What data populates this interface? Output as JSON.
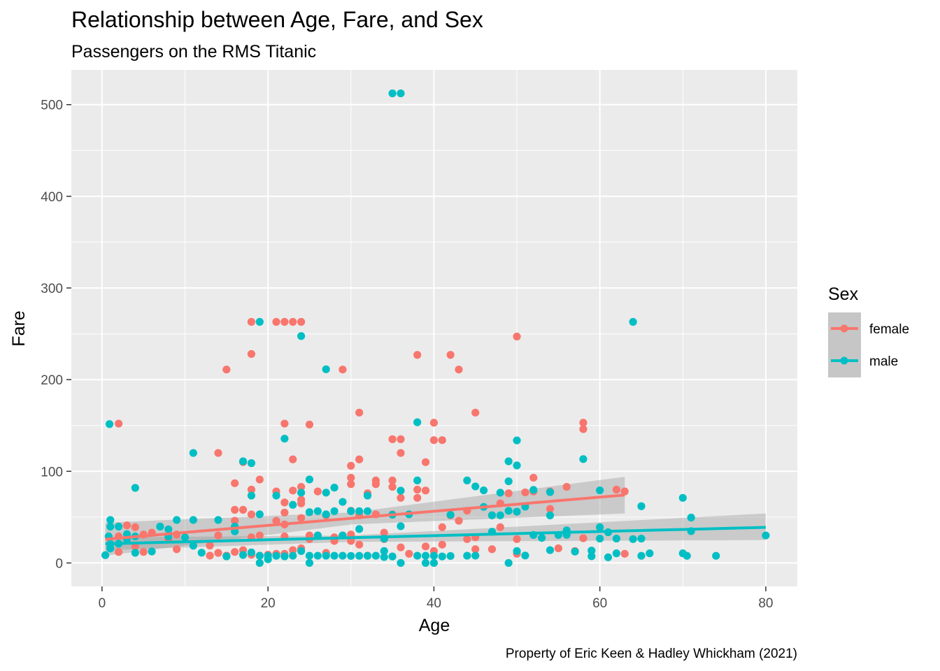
{
  "chart_data": {
    "type": "scatter",
    "title": "Relationship between Age, Fare, and Sex",
    "subtitle": "Passengers on the RMS Titanic",
    "xlabel": "Age",
    "ylabel": "Fare",
    "caption": "Property of Eric Keen & Hadley Whickham (2021)",
    "xlim": [
      -3.7,
      83.8
    ],
    "ylim": [
      -25.6,
      537.9
    ],
    "x_ticks": [
      0,
      20,
      40,
      60,
      80
    ],
    "y_ticks": [
      0,
      100,
      200,
      300,
      400,
      500
    ],
    "x_tick_labels": [
      "0",
      "20",
      "40",
      "60",
      "80"
    ],
    "y_tick_labels": [
      "0",
      "100",
      "200",
      "300",
      "400",
      "500"
    ],
    "grid": true,
    "legend": {
      "title": "Sex",
      "position": "right",
      "entries": [
        "female",
        "male"
      ]
    },
    "series": [
      {
        "name": "female",
        "color": "#f8766d",
        "points": [
          [
            2,
            152
          ],
          [
            14,
            120
          ],
          [
            15,
            211
          ],
          [
            16,
            87
          ],
          [
            16,
            58
          ],
          [
            16,
            46
          ],
          [
            16,
            12
          ],
          [
            17,
            110
          ],
          [
            17,
            58
          ],
          [
            17,
            14
          ],
          [
            18,
            263
          ],
          [
            18,
            228
          ],
          [
            18,
            80
          ],
          [
            18,
            53
          ],
          [
            18,
            28
          ],
          [
            18,
            9
          ],
          [
            19,
            91
          ],
          [
            19,
            30
          ],
          [
            19,
            8
          ],
          [
            21,
            263
          ],
          [
            21,
            78
          ],
          [
            21,
            46
          ],
          [
            21,
            10
          ],
          [
            22,
            263
          ],
          [
            22,
            152
          ],
          [
            22,
            66
          ],
          [
            22,
            55
          ],
          [
            22,
            42
          ],
          [
            22,
            29
          ],
          [
            22,
            10
          ],
          [
            23,
            263
          ],
          [
            23,
            113
          ],
          [
            23,
            79
          ],
          [
            23,
            14
          ],
          [
            24,
            263
          ],
          [
            24,
            83
          ],
          [
            24,
            69
          ],
          [
            24,
            65
          ],
          [
            24,
            49
          ],
          [
            24,
            16
          ],
          [
            25,
            151
          ],
          [
            25,
            26
          ],
          [
            26,
            78
          ],
          [
            26,
            30
          ],
          [
            27,
            11
          ],
          [
            28,
            24
          ],
          [
            29,
            211
          ],
          [
            29,
            30
          ],
          [
            30,
            106
          ],
          [
            30,
            93
          ],
          [
            30,
            86
          ],
          [
            30,
            57
          ],
          [
            30,
            31
          ],
          [
            30,
            24
          ],
          [
            31,
            164
          ],
          [
            31,
            113
          ],
          [
            31,
            52
          ],
          [
            31,
            20
          ],
          [
            32,
            76
          ],
          [
            33,
            90
          ],
          [
            33,
            86
          ],
          [
            33,
            53
          ],
          [
            34,
            26
          ],
          [
            34,
            33
          ],
          [
            35,
            135
          ],
          [
            35,
            90
          ],
          [
            35,
            83
          ],
          [
            35,
            53
          ],
          [
            36,
            135
          ],
          [
            36,
            120
          ],
          [
            36,
            71
          ],
          [
            36,
            17
          ],
          [
            37,
            10
          ],
          [
            38,
            227
          ],
          [
            38,
            80
          ],
          [
            38,
            71
          ],
          [
            39,
            110
          ],
          [
            39,
            79
          ],
          [
            40,
            153
          ],
          [
            40,
            134
          ],
          [
            40,
            13
          ],
          [
            41,
            134
          ],
          [
            41,
            39
          ],
          [
            42,
            227
          ],
          [
            42,
            52
          ],
          [
            43,
            211
          ],
          [
            43,
            46
          ],
          [
            44,
            57
          ],
          [
            45,
            164
          ],
          [
            45,
            15
          ],
          [
            47,
            52
          ],
          [
            48,
            65
          ],
          [
            48,
            39
          ],
          [
            49,
            76
          ],
          [
            50,
            247
          ],
          [
            50,
            26
          ],
          [
            51,
            77
          ],
          [
            52,
            93
          ],
          [
            52,
            78
          ],
          [
            54,
            78
          ],
          [
            54,
            59
          ],
          [
            55,
            16
          ],
          [
            56,
            83
          ],
          [
            57,
            13
          ],
          [
            58,
            153
          ],
          [
            58,
            146
          ],
          [
            58,
            27
          ],
          [
            62,
            80
          ],
          [
            63,
            78
          ],
          [
            63,
            10
          ],
          [
            2,
            29
          ],
          [
            2,
            12
          ],
          [
            3,
            41
          ],
          [
            4,
            39
          ],
          [
            4,
            18
          ],
          [
            5,
            31
          ],
          [
            5,
            12
          ],
          [
            6,
            33
          ],
          [
            8,
            26
          ],
          [
            9,
            31
          ],
          [
            9,
            15
          ],
          [
            13,
            19
          ],
          [
            13,
            8
          ],
          [
            14,
            30
          ],
          [
            14,
            11
          ],
          [
            15,
            8
          ],
          [
            20,
            9
          ],
          [
            25,
            30
          ],
          [
            27,
            52
          ],
          [
            28,
            28
          ],
          [
            32,
            8
          ],
          [
            39,
            18
          ],
          [
            41,
            20
          ],
          [
            44,
            26
          ],
          [
            45,
            28
          ],
          [
            47,
            15
          ],
          [
            50,
            10
          ]
        ],
        "trend": [
          [
            0.4,
            25.9
          ],
          [
            63,
            74.1
          ]
        ],
        "trend_band_low": [
          [
            0.4,
            8
          ],
          [
            30,
            42
          ],
          [
            63,
            54
          ]
        ],
        "trend_band_high": [
          [
            0.4,
            44
          ],
          [
            30,
            55
          ],
          [
            63,
            94
          ]
        ]
      },
      {
        "name": "male",
        "color": "#00bfc4",
        "points": [
          [
            0.4,
            8.5
          ],
          [
            0.8,
            29
          ],
          [
            0.9,
            151.5
          ],
          [
            1,
            46.9
          ],
          [
            1,
            39.7
          ],
          [
            1,
            20.6
          ],
          [
            1,
            15.7
          ],
          [
            2,
            39.7
          ],
          [
            2,
            21
          ],
          [
            3,
            31.4
          ],
          [
            3,
            26
          ],
          [
            4,
            81.9
          ],
          [
            4,
            29
          ],
          [
            4,
            11.1
          ],
          [
            6,
            12.5
          ],
          [
            7,
            39.7
          ],
          [
            8,
            36.7
          ],
          [
            8,
            29
          ],
          [
            9,
            46.9
          ],
          [
            10,
            27.9
          ],
          [
            11,
            120
          ],
          [
            11,
            46.9
          ],
          [
            11,
            18.8
          ],
          [
            12,
            11.2
          ],
          [
            14,
            46.9
          ],
          [
            15,
            7.2
          ],
          [
            16,
            39.7
          ],
          [
            16,
            34.4
          ],
          [
            17,
            110.9
          ],
          [
            17,
            8.7
          ],
          [
            18,
            108.9
          ],
          [
            18,
            73.5
          ],
          [
            18,
            11.5
          ],
          [
            19,
            263
          ],
          [
            19,
            53.1
          ],
          [
            19,
            7.8
          ],
          [
            19,
            0
          ],
          [
            20,
            7.9
          ],
          [
            20,
            4
          ],
          [
            21,
            73.5
          ],
          [
            21,
            7.8
          ],
          [
            22,
            135.6
          ],
          [
            22,
            7.2
          ],
          [
            23,
            63.4
          ],
          [
            23,
            7.9
          ],
          [
            24,
            247.5
          ],
          [
            24,
            76.7
          ],
          [
            24,
            13
          ],
          [
            25,
            91.1
          ],
          [
            25,
            55.4
          ],
          [
            25,
            7.9
          ],
          [
            25,
            0
          ],
          [
            26,
            56.5
          ],
          [
            26,
            30
          ],
          [
            26,
            7.9
          ],
          [
            27,
            211.3
          ],
          [
            27,
            76.7
          ],
          [
            27,
            53.1
          ],
          [
            27,
            7.9
          ],
          [
            28,
            82.2
          ],
          [
            28,
            56.5
          ],
          [
            28,
            7.9
          ],
          [
            29,
            66.6
          ],
          [
            29,
            30
          ],
          [
            29,
            7.9
          ],
          [
            30,
            56.5
          ],
          [
            30,
            7.7
          ],
          [
            31,
            56.5
          ],
          [
            31,
            37
          ],
          [
            31,
            7.8
          ],
          [
            32,
            73.5
          ],
          [
            32,
            56.5
          ],
          [
            32,
            7.8
          ],
          [
            33,
            7.9
          ],
          [
            34,
            26.5
          ],
          [
            34,
            13
          ],
          [
            34,
            6.5
          ],
          [
            35,
            512.3
          ],
          [
            35,
            52.6
          ],
          [
            35,
            7.1
          ],
          [
            36,
            512.3
          ],
          [
            36,
            78.9
          ],
          [
            36,
            40.1
          ],
          [
            36,
            0
          ],
          [
            37,
            53.1
          ],
          [
            38,
            153.5
          ],
          [
            38,
            90
          ],
          [
            38,
            7.9
          ],
          [
            39,
            7.9
          ],
          [
            39,
            0
          ],
          [
            40,
            7.9
          ],
          [
            40,
            0
          ],
          [
            41,
            7.1
          ],
          [
            42,
            52.6
          ],
          [
            42,
            7.6
          ],
          [
            44,
            90
          ],
          [
            44,
            7.9
          ],
          [
            45,
            83.5
          ],
          [
            45,
            8
          ],
          [
            46,
            79.2
          ],
          [
            46,
            61.2
          ],
          [
            47,
            52
          ],
          [
            47,
            34
          ],
          [
            48,
            76.7
          ],
          [
            48,
            52
          ],
          [
            49,
            110.9
          ],
          [
            49,
            89.1
          ],
          [
            49,
            56.9
          ],
          [
            49,
            0
          ],
          [
            50,
            133.7
          ],
          [
            50,
            106.4
          ],
          [
            50,
            55.9
          ],
          [
            50,
            13
          ],
          [
            51,
            61.4
          ],
          [
            51,
            8.1
          ],
          [
            52,
            79.7
          ],
          [
            52,
            30.5
          ],
          [
            53,
            27.4
          ],
          [
            54,
            77.3
          ],
          [
            54,
            51.9
          ],
          [
            54,
            14
          ],
          [
            55,
            30.5
          ],
          [
            56,
            35.5
          ],
          [
            56,
            30.7
          ],
          [
            57,
            12.4
          ],
          [
            58,
            113.3
          ],
          [
            59,
            13.5
          ],
          [
            59,
            7.3
          ],
          [
            60,
            79.2
          ],
          [
            60,
            39
          ],
          [
            60,
            26.6
          ],
          [
            61,
            33.5
          ],
          [
            61,
            6.2
          ],
          [
            62,
            26.6
          ],
          [
            62,
            10.5
          ],
          [
            64,
            263
          ],
          [
            64,
            26
          ],
          [
            65,
            61.9
          ],
          [
            65,
            26.6
          ],
          [
            65,
            7.8
          ],
          [
            66,
            10.5
          ],
          [
            70,
            71
          ],
          [
            70,
            10.5
          ],
          [
            70.5,
            7.8
          ],
          [
            71,
            49.5
          ],
          [
            71,
            34.7
          ],
          [
            74,
            7.8
          ],
          [
            80,
            30
          ]
        ],
        "trend": [
          [
            0.4,
            20.9
          ],
          [
            80,
            38.8
          ]
        ],
        "trend_band_low": [
          [
            0.4,
            14
          ],
          [
            30,
            23
          ],
          [
            80,
            25
          ]
        ],
        "trend_band_high": [
          [
            0.4,
            28
          ],
          [
            30,
            30
          ],
          [
            80,
            54
          ]
        ]
      }
    ]
  }
}
